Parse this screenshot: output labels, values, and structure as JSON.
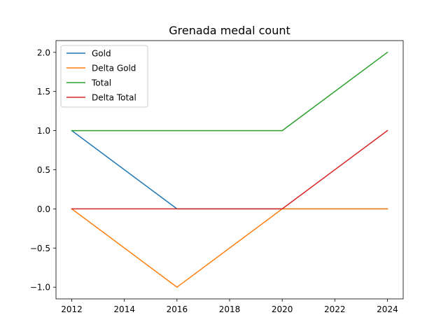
{
  "chart_data": {
    "type": "line",
    "title": "Grenada medal count",
    "xlabel": "",
    "ylabel": "",
    "x": [
      2012,
      2016,
      2020,
      2024
    ],
    "xticks": [
      2012,
      2014,
      2016,
      2018,
      2020,
      2022,
      2024
    ],
    "xtick_labels": [
      "2012",
      "2014",
      "2016",
      "2018",
      "2020",
      "2022",
      "2024"
    ],
    "yticks": [
      -1.0,
      -0.5,
      0.0,
      0.5,
      1.0,
      1.5,
      2.0
    ],
    "ytick_labels": [
      "−1.0",
      "−0.5",
      "0.0",
      "0.5",
      "1.0",
      "1.5",
      "2.0"
    ],
    "xlim": [
      2011.4,
      2024.6
    ],
    "ylim": [
      -1.15,
      2.15
    ],
    "grid": false,
    "legend_position": "top-left",
    "series": [
      {
        "name": "Gold",
        "color": "#1f77b4",
        "values": [
          1,
          0,
          0,
          0
        ]
      },
      {
        "name": "Delta Gold",
        "color": "#ff7f0e",
        "values": [
          0,
          -1,
          0,
          0
        ]
      },
      {
        "name": "Total",
        "color": "#2ca02c",
        "values": [
          1,
          1,
          1,
          2
        ]
      },
      {
        "name": "Delta Total",
        "color": "#d62728",
        "values": [
          0,
          0,
          0,
          1
        ]
      }
    ]
  }
}
